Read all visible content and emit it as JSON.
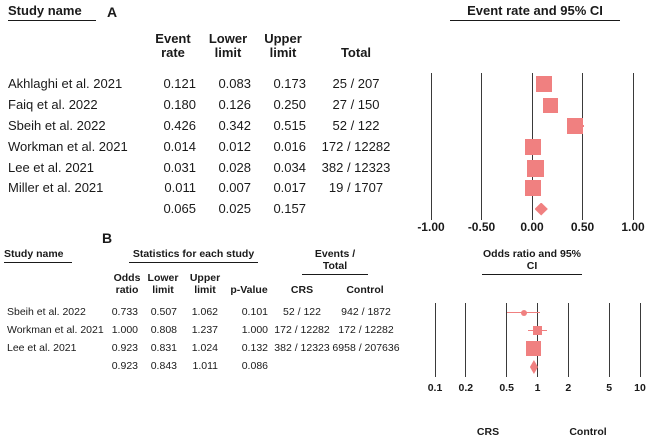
{
  "colors": {
    "marker": "#F08080",
    "whisker": "#F08080",
    "gridline": "#3a3a3a",
    "text": "#1a1a1a"
  },
  "ui": {
    "panel_a": {
      "label": "A",
      "study_header": "Study name",
      "plot_title": "Event rate and 95% CI",
      "col_event_rate": "Event rate",
      "col_lower": "Lower limit",
      "col_upper": "Upper limit",
      "col_total": "Total"
    },
    "panel_b": {
      "label": "B",
      "study_header": "Study name",
      "stats_header": "Statistics for each study",
      "events_header": "Events / Total",
      "plot_title": "Odds ratio and 95% CI",
      "col_odds_ratio": "Odds ratio",
      "col_lower": "Lower limit",
      "col_upper": "Upper limit",
      "col_p_value": "p-Value",
      "col_crs": "CRS",
      "col_control": "Control",
      "group_left": "CRS",
      "group_right": "Control"
    }
  },
  "chart_data": [
    {
      "type": "forest",
      "panel": "A",
      "title": "Event rate and 95% CI",
      "x_scale": "linear",
      "xlim": [
        -1.0,
        1.0
      ],
      "x_ticks": [
        -1.0,
        -0.5,
        0.0,
        0.5,
        1.0
      ],
      "x_tick_labels": [
        "-1.00",
        "-0.50",
        "0.00",
        "0.50",
        "1.00"
      ],
      "columns": [
        "Study name",
        "Event rate",
        "Lower limit",
        "Upper limit",
        "Total"
      ],
      "studies": [
        {
          "study": "Akhlaghi et al. 2021",
          "event_rate": "0.121",
          "lower": "0.083",
          "upper": "0.173",
          "total": "25 / 207",
          "marker_size": 16
        },
        {
          "study": "Faiq et al. 2022",
          "event_rate": "0.180",
          "lower": "0.126",
          "upper": "0.250",
          "total": "27 / 150",
          "marker_size": 15
        },
        {
          "study": "Sbeih et al. 2022",
          "event_rate": "0.426",
          "lower": "0.342",
          "upper": "0.515",
          "total": "52 / 122",
          "marker_size": 16
        },
        {
          "study": "Workman et al. 2021",
          "event_rate": "0.014",
          "lower": "0.012",
          "upper": "0.016",
          "total": "172 / 12282",
          "marker_size": 16
        },
        {
          "study": "Lee et al. 2021",
          "event_rate": "0.031",
          "lower": "0.028",
          "upper": "0.034",
          "total": "382 / 12323",
          "marker_size": 17
        },
        {
          "study": "Miller et al. 2021",
          "event_rate": "0.011",
          "lower": "0.007",
          "upper": "0.017",
          "total": "19 / 1707",
          "marker_size": 16
        }
      ],
      "summary": {
        "event_rate": "0.065",
        "lower": "0.025",
        "upper": "0.157"
      }
    },
    {
      "type": "forest",
      "panel": "B",
      "title": "Odds ratio and 95% CI",
      "x_scale": "log",
      "xlim": [
        0.1,
        10
      ],
      "x_ticks": [
        0.1,
        0.2,
        0.5,
        1,
        2,
        5,
        10
      ],
      "x_tick_labels": [
        "0.1",
        "0.2",
        "0.5",
        "1",
        "2",
        "5",
        "10"
      ],
      "columns": [
        "Study name",
        "Odds ratio",
        "Lower limit",
        "Upper limit",
        "p-Value",
        "CRS",
        "Control"
      ],
      "group_labels": {
        "left": "CRS",
        "right": "Control"
      },
      "studies": [
        {
          "study": "Sbeih et al. 2022",
          "odds_ratio": "0.733",
          "lower": "0.507",
          "upper": "1.062",
          "p_value": "0.101",
          "crs": "52 / 122",
          "control": "942 / 1872",
          "marker_size": 6,
          "marker_shape": "circle"
        },
        {
          "study": "Workman et al. 2021",
          "odds_ratio": "1.000",
          "lower": "0.808",
          "upper": "1.237",
          "p_value": "1.000",
          "crs": "172 / 12282",
          "control": "172 / 12282",
          "marker_size": 9,
          "marker_shape": "square"
        },
        {
          "study": "Lee et al. 2021",
          "odds_ratio": "0.923",
          "lower": "0.831",
          "upper": "1.024",
          "p_value": "0.132",
          "crs": "382 / 12323",
          "control": "6958 / 207636",
          "marker_size": 15,
          "marker_shape": "square"
        }
      ],
      "summary": {
        "odds_ratio": "0.923",
        "lower": "0.843",
        "upper": "1.011",
        "p_value": "0.086"
      }
    }
  ]
}
